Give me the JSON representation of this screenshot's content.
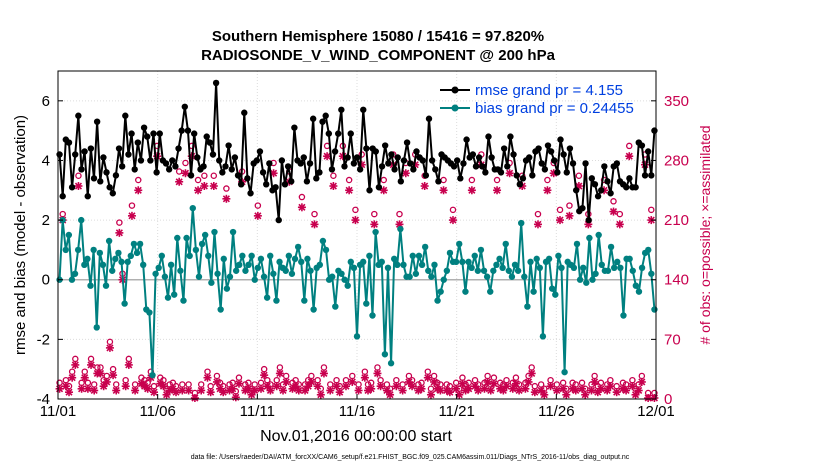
{
  "chart_data": {
    "type": "line",
    "title": "Southern Hemisphere 15080 / 15416 = 97.820%",
    "subtitle": "RADIOSONDE_V_WIND_COMPONENT @ 200 hPa",
    "xlabel": "Nov.01,2016 00:00:00 start",
    "ylabel": "rmse and bias (model - observation)",
    "y2label": "# of obs: o=possible; ×=assimilated",
    "footer": "data file: /Users/raeder/DAI/ATM_forcXX/CAM6_setup/f.e21.FHIST_BGC.f09_025.CAM6assim.011/Diags_NTrS_2016-11/obs_diag_output.nc",
    "x_ticks": [
      "11/01",
      "11/06",
      "11/11",
      "11/16",
      "11/21",
      "11/26",
      "12/01"
    ],
    "xlim": [
      0,
      30
    ],
    "ylim": [
      -4,
      7
    ],
    "y_ticks": [
      "-4",
      "-2",
      "0",
      "2",
      "4",
      "6"
    ],
    "y2lim": [
      0,
      385
    ],
    "y2_ticks": [
      "0",
      "70",
      "140",
      "210",
      "280",
      "350"
    ],
    "grid": true,
    "legend": {
      "position": "top-right",
      "entries": [
        "rmse grand pr = 4.155",
        "bias grand pr = 0.24455"
      ]
    },
    "colors": {
      "rmse": "#000000",
      "bias": "#008080",
      "obs": "#c8004e",
      "zero": "#b0b0b0",
      "legend_text": "#0040e0"
    },
    "series": [
      {
        "name": "rmse",
        "axis": "left",
        "values": [
          4.2,
          2.8,
          4.7,
          4.6,
          3.1,
          4.2,
          5.5,
          3.7,
          4.3,
          2.8,
          4.4,
          3.4,
          5.3,
          3.3,
          4.1,
          3.6,
          3.1,
          2.9,
          3.5,
          4.4,
          3.8,
          5.5,
          4.2,
          4.9,
          3.7,
          4.6,
          4.0,
          5.1,
          4.8,
          4.0,
          4.9,
          3.6,
          4.9,
          4.0,
          3.9,
          3.7,
          4.0,
          3.8,
          4.4,
          5.0,
          5.8,
          5.0,
          3.5,
          4.9,
          4.1,
          3.7,
          3.8,
          4.8,
          4.6,
          4.2,
          6.6,
          4.0,
          3.6,
          3.8,
          4.5,
          3.7,
          4.1,
          3.5,
          3.2,
          5.6,
          3.4,
          2.9,
          3.9,
          4.0,
          4.3,
          3.6,
          3.2,
          3.9,
          3.0,
          3.1,
          2.0,
          4.0,
          3.2,
          3.8,
          3.3,
          5.1,
          4.0,
          3.9,
          4.1,
          3.3,
          3.9,
          5.4,
          3.4,
          3.6,
          5.3,
          5.5,
          4.9,
          3.7,
          4.3,
          4.9,
          5.7,
          3.8,
          4.1,
          4.9,
          3.9,
          4.1,
          3.7,
          5.7,
          4.4,
          3.0,
          4.4,
          4.3,
          3.1,
          3.8,
          4.5,
          3.9,
          4.2,
          3.7,
          4.1,
          3.3,
          4.0,
          4.6,
          3.9,
          3.7,
          4.3,
          4.1,
          4.0,
          3.5,
          5.4,
          4.0,
          3.7,
          3.3,
          4.2,
          4.1,
          4.0,
          3.9,
          3.8,
          4.0,
          3.4,
          3.9,
          4.7,
          4.1,
          4.2,
          3.8,
          4.1,
          3.8,
          3.6,
          4.8,
          4.1,
          3.7,
          3.7,
          3.6,
          4.4,
          3.8,
          4.8,
          4.2,
          3.5,
          3.2,
          3.4,
          4.0,
          4.1,
          3.5,
          4.3,
          4.4,
          3.9,
          3.7,
          4.5,
          4.3,
          4.0,
          3.6,
          4.7,
          4.2,
          3.6,
          4.4,
          3.9,
          3.0,
          2.3,
          2.4,
          3.9,
          2.0,
          3.4,
          3.2,
          2.8,
          3.0,
          3.8,
          3.3,
          2.9,
          3.8,
          3.9,
          3.3,
          3.2,
          3.1,
          3.4,
          3.1,
          3.1,
          4.6,
          4.5,
          3.5,
          4.3,
          3.5,
          5.0
        ]
      },
      {
        "name": "bias",
        "axis": "left",
        "values": [
          0.0,
          2.0,
          1.0,
          1.5,
          0.0,
          0.2,
          1.0,
          2.0,
          0.5,
          0.7,
          -0.2,
          1.0,
          -1.6,
          0.9,
          0.5,
          -0.2,
          1.3,
          0.3,
          0.7,
          0.9,
          0.6,
          -0.8,
          0.6,
          0.8,
          1.2,
          0.9,
          1.2,
          0.5,
          -1.0,
          -1.1,
          -3.2,
          0.2,
          0.4,
          0.8,
          0.1,
          -0.6,
          0.5,
          -0.5,
          1.4,
          0.3,
          -0.7,
          1.4,
          0.8,
          2.4,
          1.0,
          0.1,
          1.2,
          1.5,
          0.8,
          -0.1,
          1.6,
          0.2,
          -1.0,
          0.7,
          -0.3,
          0.1,
          1.6,
          0.3,
          0.5,
          0.8,
          0.3,
          0.5,
          0.8,
          0.0,
          0.4,
          0.7,
          0.1,
          -0.6,
          0.8,
          0.2,
          -0.7,
          0.6,
          0.4,
          0.3,
          0.8,
          0.2,
          0.7,
          1.1,
          0.6,
          -0.7,
          0.7,
          0.3,
          -1.0,
          0.4,
          0.5,
          1.3,
          1.0,
          0.0,
          0.1,
          -0.9,
          0.3,
          0.2,
          0.0,
          -0.2,
          0.6,
          0.4,
          -1.9,
          0.5,
          0.6,
          -0.8,
          0.8,
          -1.2,
          1.6,
          0.5,
          0.6,
          -2.5,
          0.4,
          -2.8,
          0.7,
          0.5,
          1.7,
          0.5,
          0.1,
          0.1,
          0.8,
          0.2,
          0.8,
          0.5,
          1.1,
          0.3,
          0.1,
          0.5,
          -0.7,
          -0.4,
          0.0,
          0.3,
          0.9,
          0.6,
          0.6,
          1.2,
          0.6,
          -0.4,
          0.6,
          0.4,
          0.8,
          0.3,
          1.0,
          0.3,
          0.1,
          -0.4,
          0.3,
          0.5,
          0.7,
          0.4,
          1.2,
          0.3,
          0.1,
          0.5,
          0.3,
          1.9,
          0.1,
          -0.9,
          0.6,
          -0.4,
          0.7,
          0.4,
          -1.9,
          0.6,
          0.7,
          -0.3,
          -0.5,
          0.8,
          0.4,
          -3.1,
          0.6,
          0.5,
          0.4,
          1.2,
          0.0,
          0.4,
          -0.1,
          1.4,
          0.0,
          0.2,
          1.5,
          0.5,
          0.3,
          0.3,
          1.1,
          0.4,
          0.6,
          0.4,
          -1.2,
          0.7,
          0.7,
          0.3,
          -0.2,
          -0.4,
          0.4,
          0.9,
          1.0,
          0.2,
          -1.0
        ]
      },
      {
        "name": "possible",
        "axis": "right",
        "values": [
          12,
          210,
          15,
          8,
          25,
          40,
          255,
          12,
          25,
          12,
          40,
          10,
          30,
          30,
          15,
          20,
          60,
          28,
          10,
          200,
          140,
          15,
          40,
          220,
          10,
          250,
          18,
          15,
          12,
          25,
          8,
          290,
          18,
          15,
          5,
          10,
          12,
          8,
          260,
          10,
          270,
          10,
          290,
          0,
          250,
          10,
          255,
          25,
          8,
          255,
          20,
          12,
          8,
          240,
          10,
          12,
          2,
          18,
          260,
          10,
          12,
          5,
          10,
          220,
          12,
          28,
          15,
          10,
          270,
          15,
          30,
          10,
          20,
          260,
          12,
          15,
          10,
          230,
          10,
          15,
          20,
          210,
          15,
          5,
          30,
          290,
          10,
          255,
          15,
          8,
          290,
          15,
          250,
          20,
          215,
          10,
          280,
          25,
          10,
          12,
          210,
          30,
          15,
          250,
          10,
          5,
          280,
          15,
          210,
          10,
          270,
          20,
          15,
          280,
          10,
          12,
          255,
          25,
          5,
          20,
          12,
          10,
          250,
          10,
          8,
          215,
          12,
          5,
          18,
          10,
          12,
          250,
          15,
          10,
          280,
          12,
          20,
          10,
          18,
          250,
          12,
          10,
          15,
          270,
          12,
          18,
          10,
          255,
          12,
          20,
          30,
          8,
          210,
          10,
          5,
          250,
          15,
          270,
          10,
          215,
          12,
          5,
          220,
          12,
          10,
          255,
          12,
          5,
          210,
          10,
          20,
          8,
          12,
          250,
          10,
          15,
          225,
          8,
          210,
          12,
          10,
          290,
          15,
          5,
          10,
          20,
          280,
          0,
          215,
          0
        ]
      },
      {
        "name": "assimilated",
        "axis": "right",
        "values": [
          12,
          210,
          15,
          8,
          25,
          40,
          250,
          12,
          25,
          12,
          40,
          10,
          30,
          30,
          15,
          20,
          60,
          28,
          10,
          195,
          140,
          15,
          40,
          215,
          10,
          245,
          18,
          15,
          12,
          25,
          8,
          285,
          18,
          15,
          5,
          10,
          12,
          8,
          255,
          10,
          265,
          10,
          285,
          0,
          245,
          10,
          250,
          25,
          8,
          250,
          20,
          12,
          8,
          235,
          10,
          12,
          2,
          18,
          255,
          10,
          12,
          5,
          10,
          215,
          12,
          28,
          15,
          10,
          265,
          15,
          30,
          10,
          20,
          255,
          12,
          15,
          10,
          225,
          10,
          15,
          20,
          205,
          15,
          5,
          30,
          285,
          10,
          250,
          15,
          8,
          285,
          15,
          245,
          20,
          210,
          10,
          275,
          25,
          10,
          12,
          205,
          30,
          15,
          245,
          10,
          5,
          275,
          15,
          205,
          10,
          265,
          20,
          15,
          275,
          10,
          12,
          250,
          25,
          5,
          20,
          12,
          10,
          245,
          10,
          8,
          210,
          12,
          5,
          18,
          10,
          12,
          245,
          15,
          10,
          275,
          12,
          20,
          10,
          18,
          245,
          12,
          10,
          15,
          265,
          12,
          18,
          10,
          250,
          12,
          20,
          30,
          8,
          205,
          10,
          5,
          245,
          15,
          265,
          10,
          210,
          12,
          5,
          215,
          12,
          10,
          250,
          12,
          5,
          205,
          10,
          20,
          8,
          12,
          245,
          10,
          15,
          220,
          8,
          205,
          12,
          10,
          285,
          15,
          5,
          10,
          20,
          275,
          0,
          210,
          0
        ]
      }
    ]
  }
}
